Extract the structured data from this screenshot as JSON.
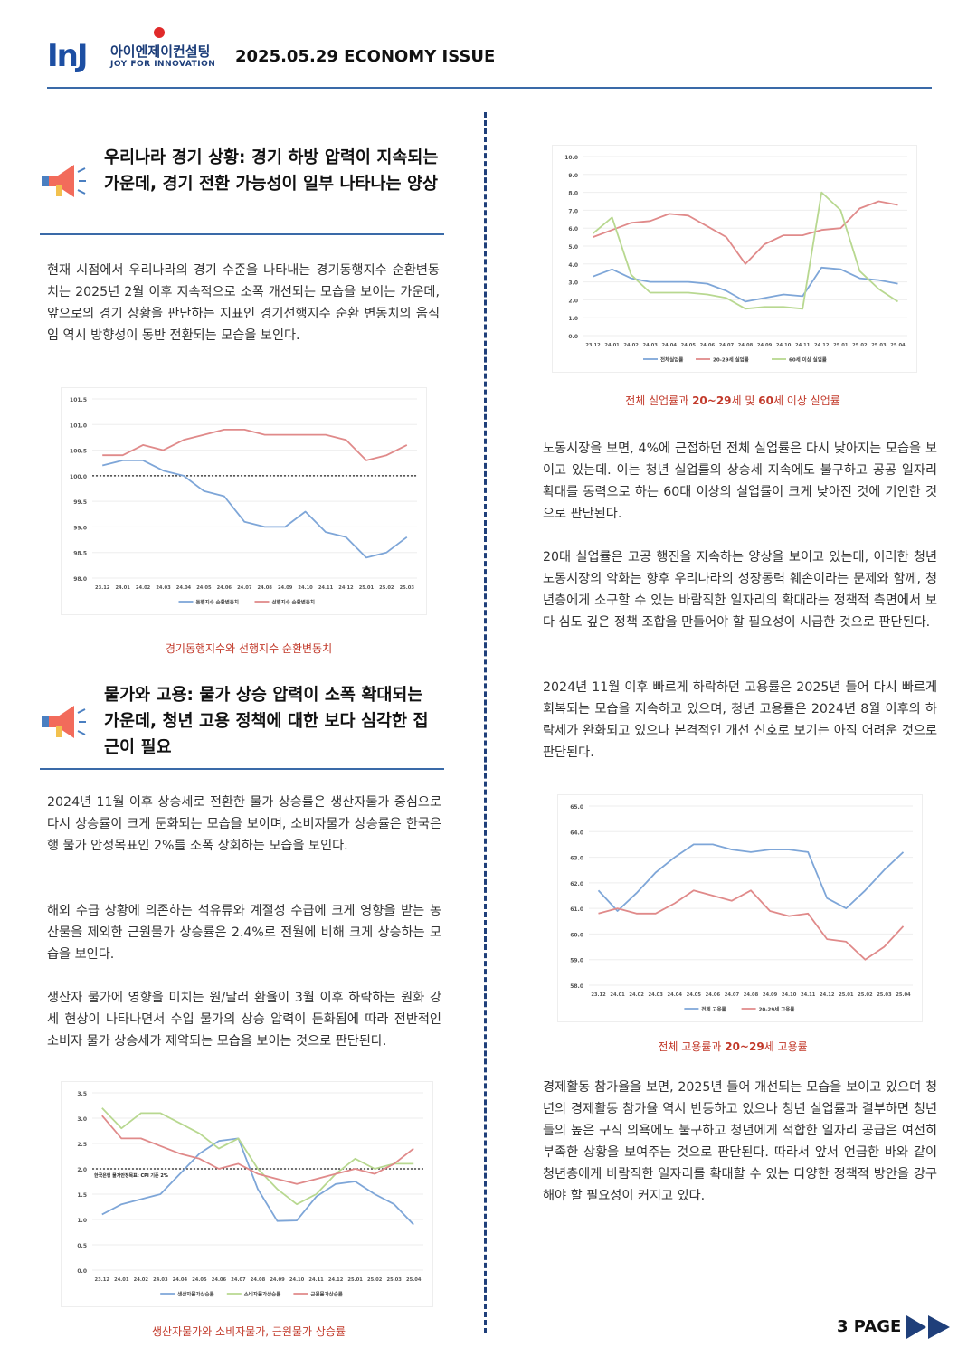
{
  "header": {
    "logo_mark": "InJ",
    "logo_korean": "아이엔제이컨설팅",
    "logo_english": "JOY FOR INNOVATION",
    "issue": "2025.05.29 ECONOMY ISSUE"
  },
  "sections": {
    "s1": {
      "title": "우리나라 경기 상황: 경기 하방 압력이 지속되는 가운데, 경기 전환 가능성이 일부 나타나는 양상",
      "p1": "현재 시점에서 우리나라의 경기 수준을 나타내는 경기동행지수 순환변동치는 2025년 2월 이후 지속적으로 소폭 개선되는 모습을 보이는 가운데, 앞으로의 경기 상황을 판단하는 지표인 경기선행지수 순환 변동치의 움직임 역시 방향성이 동반 전환되는 모습을 보인다.",
      "caption": "경기동행지수와 선행지수 순환변동치"
    },
    "s2": {
      "title": "물가와 고용: 물가 상승 압력이 소폭 확대되는 가운데, 청년 고용 정책에 대한 보다 심각한 접근이 필요",
      "p1": "2024년 11월 이후 상승세로 전환한 물가 상승률은 생산자물가 중심으로 다시 상승률이 크게 둔화되는 모습을 보이며, 소비자물가 상승률은 한국은행 물가 안정목표인 2%를 소폭 상회하는 모습을 보인다.",
      "p2": "해외 수급 상황에 의존하는 석유류와 계절성 수급에 크게 영향을 받는 농산물을 제외한 근원물가 상승률은 2.4%로 전월에 비해 크게 상승하는 모습을 보인다.",
      "p3": "생산자 물가에 영향을 미치는 원/달러 환율이 3월 이후 하락하는 원화 강세 현상이 나타나면서 수입 물가의 상승 압력이 둔화됨에 따라 전반적인 소비자 물가 상승세가 제약되는 모습을 보이는 것으로 판단된다.",
      "caption": "생산자물가와 소비자물가, 근원물가 상승률"
    },
    "right": {
      "caption1_pre": "전체 실업률과 ",
      "caption1_b1": "20~29",
      "caption1_mid": "세 및 ",
      "caption1_b2": "60",
      "caption1_post": "세 이상 실업률",
      "p1": "노동시장을 보면, 4%에 근접하던 전체 실업률은 다시 낮아지는 모습을 보이고 있는데. 이는 청년 실업률의 상승세 지속에도 불구하고 공공 일자리 확대를 동력으로 하는 60대 이상의 실업률이 크게 낮아진 것에 기인한 것으로 판단된다.",
      "p2": "20대 실업률은 고공 행진을 지속하는 양상을 보이고 있는데, 이러한 청년 노동시장의 악화는 향후 우리나라의 성장동력 훼손이라는 문제와 함께, 청년층에게 소구할 수 있는 바람직한 일자리의 확대라는 정책적 측면에서 보다 심도 깊은 정책 조합을 만들어야 할 필요성이 시급한 것으로 판단된다.",
      "p3": "2024년 11월 이후 빠르게 하락하던 고용률은 2025년 들어 다시 빠르게 회복되는 모습을 지속하고 있으며, 청년 고용률은 2024년 8월 이후의 하락세가 완화되고 있으나 본격적인 개선 신호로 보기는 아직 어려운 것으로 판단된다.",
      "caption2_pre": "전체 고용률과 ",
      "caption2_b": "20~29",
      "caption2_post": "세 고용률",
      "p4": "경제활동 참가율을 보면, 2025년 들어 개선되는 모습을 보이고 있으며 청년의 경제활동 참가율 역시 반등하고 있으나 청년 실업률과 결부하면 청년들의 높은 구직 의욕에도 불구하고 청년에게 적합한 일자리 공급은 여전히 부족한 상황을 보여주는 것으로 판단된다. 따라서 앞서 언급한 바와 같이 청년층에게 바람직한 일자리를 확대할 수 있는 다양한 정책적 방안을 강구해야 할 필요성이 커지고 있다."
    }
  },
  "page": "3 PAGE",
  "colors": {
    "blue": "#7ea6d8",
    "red": "#e08a8a",
    "green": "#b8d890",
    "rule": "#3a6aa8"
  },
  "chart_data": [
    {
      "type": "line",
      "x": [
        "23.12",
        "24.01",
        "24.02",
        "24.03",
        "24.04",
        "24.05",
        "24.06",
        "24.07",
        "24.08",
        "24.09",
        "24.10",
        "24.11",
        "24.12",
        "25.01",
        "25.02",
        "25.03"
      ],
      "series": [
        {
          "name": "동행지수 순환변동치",
          "color": "#7ea6d8",
          "values": [
            100.2,
            100.3,
            100.3,
            100.1,
            100.0,
            99.7,
            99.6,
            99.1,
            99.0,
            99.0,
            99.3,
            98.9,
            98.8,
            98.4,
            98.5,
            98.8
          ]
        },
        {
          "name": "선행지수 순환변동치",
          "color": "#e08a8a",
          "values": [
            100.4,
            100.4,
            100.6,
            100.5,
            100.7,
            100.8,
            100.9,
            100.9,
            100.8,
            100.8,
            100.8,
            100.8,
            100.7,
            100.3,
            100.4,
            100.6
          ]
        }
      ],
      "reference": {
        "value": 100.0
      },
      "ylim": [
        98.0,
        101.5
      ],
      "yticks": [
        98.0,
        98.5,
        99.0,
        99.5,
        100.0,
        100.5,
        101.0,
        101.5
      ],
      "ytick_labels": [
        "98.0",
        "98.5",
        "99.0",
        "99.5",
        "100.0",
        "100.5",
        "101.0",
        "101.5"
      ]
    },
    {
      "type": "line",
      "x": [
        "23.12",
        "24.01",
        "24.02",
        "24.03",
        "24.04",
        "24.05",
        "24.06",
        "24.07",
        "24.08",
        "24.09",
        "24.10",
        "24.11",
        "24.12",
        "25.01",
        "25.02",
        "25.03",
        "25.04"
      ],
      "series": [
        {
          "name": "생산자물가상승률",
          "color": "#7ea6d8",
          "values": [
            1.1,
            1.3,
            1.4,
            1.5,
            1.9,
            2.3,
            2.55,
            2.6,
            1.6,
            0.97,
            0.98,
            1.45,
            1.7,
            1.75,
            1.5,
            1.3,
            0.9
          ]
        },
        {
          "name": "소비자물가상승률",
          "color": "#b8d890",
          "values": [
            3.2,
            2.8,
            3.1,
            3.1,
            2.9,
            2.7,
            2.4,
            2.6,
            2.0,
            1.6,
            1.3,
            1.5,
            1.9,
            2.2,
            2.0,
            2.1,
            2.1
          ]
        },
        {
          "name": "근원물가상승률",
          "color": "#e08a8a",
          "values": [
            3.05,
            2.6,
            2.6,
            2.45,
            2.3,
            2.2,
            2.0,
            2.1,
            1.9,
            1.8,
            1.7,
            1.8,
            1.9,
            2.0,
            1.9,
            2.1,
            2.4
          ]
        }
      ],
      "reference": {
        "value": 2.0,
        "label": "한국은행 물가안정목표: CPI 기준 2%"
      },
      "ylim": [
        0,
        3.5
      ],
      "yticks": [
        0,
        0.5,
        1.0,
        1.5,
        2.0,
        2.5,
        3.0,
        3.5
      ],
      "ytick_labels": [
        "0.0",
        "0.5",
        "1.0",
        "1.5",
        "2.0",
        "2.5",
        "3.0",
        "3.5"
      ]
    },
    {
      "type": "line",
      "x": [
        "23.12",
        "24.01",
        "24.02",
        "24.03",
        "24.04",
        "24.05",
        "24.06",
        "24.07",
        "24.08",
        "24.09",
        "24.10",
        "24.11",
        "24.12",
        "25.01",
        "25.02",
        "25.03",
        "25.04"
      ],
      "series": [
        {
          "name": "전체실업률",
          "color": "#7ea6d8",
          "values": [
            3.3,
            3.7,
            3.2,
            3.0,
            3.0,
            3.0,
            2.9,
            2.5,
            1.9,
            2.1,
            2.3,
            2.2,
            3.8,
            3.7,
            3.2,
            3.1,
            2.9
          ]
        },
        {
          "name": "20-29세 실업률",
          "color": "#e08a8a",
          "values": [
            5.5,
            5.9,
            6.3,
            6.4,
            6.8,
            6.7,
            6.1,
            5.5,
            4.0,
            5.1,
            5.6,
            5.6,
            5.9,
            6.0,
            7.1,
            7.5,
            7.3
          ]
        },
        {
          "name": "60세 이상 실업률",
          "color": "#b8d890",
          "values": [
            5.7,
            6.6,
            3.4,
            2.4,
            2.4,
            2.4,
            2.3,
            2.1,
            1.5,
            1.6,
            1.6,
            1.5,
            8.0,
            7.0,
            3.6,
            2.6,
            1.9
          ]
        }
      ],
      "ylim": [
        0,
        10
      ],
      "yticks": [
        0,
        1,
        2,
        3,
        4,
        5,
        6,
        7,
        8,
        9,
        10
      ],
      "ytick_labels": [
        "0.0",
        "1.0",
        "2.0",
        "3.0",
        "4.0",
        "5.0",
        "6.0",
        "7.0",
        "8.0",
        "9.0",
        "10.0"
      ]
    },
    {
      "type": "line",
      "x": [
        "23.12",
        "24.01",
        "24.02",
        "24.03",
        "24.04",
        "24.05",
        "24.06",
        "24.07",
        "24.08",
        "24.09",
        "24.10",
        "24.11",
        "24.12",
        "25.01",
        "25.02",
        "25.03",
        "25.04"
      ],
      "series": [
        {
          "name": "전체 고용률",
          "color": "#7ea6d8",
          "values": [
            61.7,
            60.9,
            61.6,
            62.4,
            63.0,
            63.5,
            63.5,
            63.3,
            63.2,
            63.3,
            63.3,
            63.2,
            61.4,
            61.0,
            61.7,
            62.5,
            63.2
          ]
        },
        {
          "name": "20-29세 고용률",
          "color": "#e08a8a",
          "values": [
            60.8,
            61.0,
            60.8,
            60.8,
            61.2,
            61.7,
            61.5,
            61.3,
            61.7,
            60.9,
            60.7,
            60.8,
            59.8,
            59.7,
            59.0,
            59.5,
            60.3
          ]
        }
      ],
      "ylim": [
        58,
        65
      ],
      "yticks": [
        58,
        59,
        60,
        61,
        62,
        63,
        64,
        65
      ],
      "ytick_labels": [
        "58.0",
        "59.0",
        "60.0",
        "61.0",
        "62.0",
        "63.0",
        "64.0",
        "65.0"
      ]
    }
  ]
}
